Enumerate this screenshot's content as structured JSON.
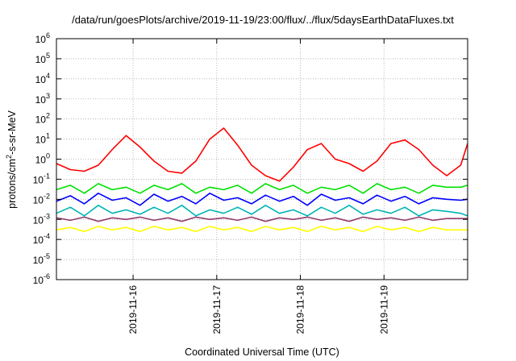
{
  "chart_data": {
    "type": "line",
    "title": "/data/run/goesPlots/archive/2019-11-19/23:00/flux/../flux/5daysEarthDataFluxes.txt",
    "xlabel": "Coordinated Universal Time (UTC)",
    "ylabel": {
      "base": "protons/cm",
      "sup": "2",
      "rest": "-s-sr-MeV"
    },
    "yscale": "log",
    "ylim": [
      1e-06,
      1000000.0
    ],
    "y_ticks": [
      {
        "value": 1e-06,
        "base": "10",
        "exp": "-6"
      },
      {
        "value": 1e-05,
        "base": "10",
        "exp": "-5"
      },
      {
        "value": 0.0001,
        "base": "10",
        "exp": "-4"
      },
      {
        "value": 0.001,
        "base": "10",
        "exp": "-3"
      },
      {
        "value": 0.01,
        "base": "10",
        "exp": "-2"
      },
      {
        "value": 0.1,
        "base": "10",
        "exp": "-1"
      },
      {
        "value": 1,
        "base": "10",
        "exp": "0"
      },
      {
        "value": 10.0,
        "base": "10",
        "exp": "1"
      },
      {
        "value": 100.0,
        "base": "10",
        "exp": "2"
      },
      {
        "value": 1000.0,
        "base": "10",
        "exp": "3"
      },
      {
        "value": 10000.0,
        "base": "10",
        "exp": "4"
      },
      {
        "value": 100000.0,
        "base": "10",
        "exp": "5"
      },
      {
        "value": 1000000.0,
        "base": "10",
        "exp": "6"
      }
    ],
    "xlim": [
      "2019-11-15T02:00",
      "2019-11-20T00:00"
    ],
    "x_ticks": [
      {
        "value": "2019-11-16T00:00",
        "label": "2019-11-16"
      },
      {
        "value": "2019-11-17T00:00",
        "label": "2019-11-17"
      },
      {
        "value": "2019-11-18T00:00",
        "label": "2019-11-18"
      },
      {
        "value": "2019-11-19T00:00",
        "label": "2019-11-19"
      }
    ],
    "grid": true,
    "series": [
      {
        "color": "#ff0000",
        "x": [
          "2019-11-15T02:00",
          "2019-11-15T06:00",
          "2019-11-15T10:00",
          "2019-11-15T14:00",
          "2019-11-15T18:00",
          "2019-11-15T22:00",
          "2019-11-16T02:00",
          "2019-11-16T06:00",
          "2019-11-16T10:00",
          "2019-11-16T14:00",
          "2019-11-16T18:00",
          "2019-11-16T22:00",
          "2019-11-17T02:00",
          "2019-11-17T06:00",
          "2019-11-17T10:00",
          "2019-11-17T14:00",
          "2019-11-17T18:00",
          "2019-11-17T22:00",
          "2019-11-18T02:00",
          "2019-11-18T06:00",
          "2019-11-18T10:00",
          "2019-11-18T14:00",
          "2019-11-18T18:00",
          "2019-11-18T22:00",
          "2019-11-19T02:00",
          "2019-11-19T06:00",
          "2019-11-19T10:00",
          "2019-11-19T14:00",
          "2019-11-19T18:00",
          "2019-11-19T22:00",
          "2019-11-20T00:00"
        ],
        "values": [
          0.6,
          0.3,
          0.25,
          0.5,
          3,
          15,
          4,
          0.8,
          0.25,
          0.2,
          0.8,
          10,
          35,
          5,
          0.5,
          0.15,
          0.08,
          0.4,
          3,
          6,
          1,
          0.6,
          0.25,
          0.8,
          6,
          9,
          3,
          0.5,
          0.15,
          0.5,
          6
        ]
      },
      {
        "color": "#00e000",
        "x": [
          "2019-11-15T02:00",
          "2019-11-15T06:00",
          "2019-11-15T10:00",
          "2019-11-15T14:00",
          "2019-11-15T18:00",
          "2019-11-15T22:00",
          "2019-11-16T02:00",
          "2019-11-16T06:00",
          "2019-11-16T10:00",
          "2019-11-16T14:00",
          "2019-11-16T18:00",
          "2019-11-16T22:00",
          "2019-11-17T02:00",
          "2019-11-17T06:00",
          "2019-11-17T10:00",
          "2019-11-17T14:00",
          "2019-11-17T18:00",
          "2019-11-17T22:00",
          "2019-11-18T02:00",
          "2019-11-18T06:00",
          "2019-11-18T10:00",
          "2019-11-18T14:00",
          "2019-11-18T18:00",
          "2019-11-18T22:00",
          "2019-11-19T02:00",
          "2019-11-19T06:00",
          "2019-11-19T10:00",
          "2019-11-19T14:00",
          "2019-11-19T18:00",
          "2019-11-19T22:00",
          "2019-11-20T00:00"
        ],
        "values": [
          0.03,
          0.05,
          0.02,
          0.06,
          0.03,
          0.04,
          0.02,
          0.05,
          0.03,
          0.06,
          0.02,
          0.04,
          0.03,
          0.05,
          0.02,
          0.06,
          0.03,
          0.05,
          0.02,
          0.04,
          0.03,
          0.05,
          0.02,
          0.06,
          0.03,
          0.04,
          0.02,
          0.05,
          0.04,
          0.04,
          0.05
        ]
      },
      {
        "color": "#0000ff",
        "x": [
          "2019-11-15T02:00",
          "2019-11-15T06:00",
          "2019-11-15T10:00",
          "2019-11-15T14:00",
          "2019-11-15T18:00",
          "2019-11-15T22:00",
          "2019-11-16T02:00",
          "2019-11-16T06:00",
          "2019-11-16T10:00",
          "2019-11-16T14:00",
          "2019-11-16T18:00",
          "2019-11-16T22:00",
          "2019-11-17T02:00",
          "2019-11-17T06:00",
          "2019-11-17T10:00",
          "2019-11-17T14:00",
          "2019-11-17T18:00",
          "2019-11-17T22:00",
          "2019-11-18T02:00",
          "2019-11-18T06:00",
          "2019-11-18T10:00",
          "2019-11-18T14:00",
          "2019-11-18T18:00",
          "2019-11-18T22:00",
          "2019-11-19T02:00",
          "2019-11-19T06:00",
          "2019-11-19T10:00",
          "2019-11-19T14:00",
          "2019-11-19T18:00",
          "2019-11-19T22:00",
          "2019-11-20T00:00"
        ],
        "values": [
          0.008,
          0.015,
          0.006,
          0.02,
          0.009,
          0.012,
          0.005,
          0.018,
          0.008,
          0.014,
          0.006,
          0.02,
          0.009,
          0.012,
          0.006,
          0.016,
          0.008,
          0.014,
          0.005,
          0.018,
          0.009,
          0.012,
          0.006,
          0.016,
          0.008,
          0.014,
          0.006,
          0.012,
          0.01,
          0.009,
          0.01
        ]
      },
      {
        "color": "#00b4b4",
        "x": [
          "2019-11-15T02:00",
          "2019-11-15T06:00",
          "2019-11-15T10:00",
          "2019-11-15T14:00",
          "2019-11-15T18:00",
          "2019-11-15T22:00",
          "2019-11-16T02:00",
          "2019-11-16T06:00",
          "2019-11-16T10:00",
          "2019-11-16T14:00",
          "2019-11-16T18:00",
          "2019-11-16T22:00",
          "2019-11-17T02:00",
          "2019-11-17T06:00",
          "2019-11-17T10:00",
          "2019-11-17T14:00",
          "2019-11-17T18:00",
          "2019-11-17T22:00",
          "2019-11-18T02:00",
          "2019-11-18T06:00",
          "2019-11-18T10:00",
          "2019-11-18T14:00",
          "2019-11-18T18:00",
          "2019-11-18T22:00",
          "2019-11-19T02:00",
          "2019-11-19T06:00",
          "2019-11-19T10:00",
          "2019-11-19T14:00",
          "2019-11-19T18:00",
          "2019-11-19T22:00",
          "2019-11-20T00:00"
        ],
        "values": [
          0.002,
          0.004,
          0.0015,
          0.005,
          0.002,
          0.003,
          0.0018,
          0.004,
          0.002,
          0.005,
          0.0015,
          0.003,
          0.002,
          0.004,
          0.0018,
          0.005,
          0.002,
          0.003,
          0.0015,
          0.004,
          0.002,
          0.005,
          0.0018,
          0.003,
          0.002,
          0.004,
          0.0015,
          0.003,
          0.0025,
          0.002,
          0.0015
        ]
      },
      {
        "color": "#943c6e",
        "x": [
          "2019-11-15T02:00",
          "2019-11-15T06:00",
          "2019-11-15T10:00",
          "2019-11-15T14:00",
          "2019-11-15T18:00",
          "2019-11-15T22:00",
          "2019-11-16T02:00",
          "2019-11-16T06:00",
          "2019-11-16T10:00",
          "2019-11-16T14:00",
          "2019-11-16T18:00",
          "2019-11-16T22:00",
          "2019-11-17T02:00",
          "2019-11-17T06:00",
          "2019-11-17T10:00",
          "2019-11-17T14:00",
          "2019-11-17T18:00",
          "2019-11-17T22:00",
          "2019-11-18T02:00",
          "2019-11-18T06:00",
          "2019-11-18T10:00",
          "2019-11-18T14:00",
          "2019-11-18T18:00",
          "2019-11-18T22:00",
          "2019-11-19T02:00",
          "2019-11-19T06:00",
          "2019-11-19T10:00",
          "2019-11-19T14:00",
          "2019-11-19T18:00",
          "2019-11-19T22:00",
          "2019-11-20T00:00"
        ],
        "values": [
          0.0012,
          0.0009,
          0.0013,
          0.0008,
          0.0012,
          0.001,
          0.0013,
          0.0009,
          0.0012,
          0.0008,
          0.0013,
          0.001,
          0.0012,
          0.0009,
          0.0013,
          0.0008,
          0.0012,
          0.001,
          0.0013,
          0.0009,
          0.0012,
          0.0008,
          0.0013,
          0.001,
          0.0012,
          0.0009,
          0.0013,
          0.0009,
          0.0011,
          0.0011,
          0.0011
        ]
      },
      {
        "color": "#ffff00",
        "x": [
          "2019-11-15T02:00",
          "2019-11-15T06:00",
          "2019-11-15T10:00",
          "2019-11-15T14:00",
          "2019-11-15T18:00",
          "2019-11-15T22:00",
          "2019-11-16T02:00",
          "2019-11-16T06:00",
          "2019-11-16T10:00",
          "2019-11-16T14:00",
          "2019-11-16T18:00",
          "2019-11-16T22:00",
          "2019-11-17T02:00",
          "2019-11-17T06:00",
          "2019-11-17T10:00",
          "2019-11-17T14:00",
          "2019-11-17T18:00",
          "2019-11-17T22:00",
          "2019-11-18T02:00",
          "2019-11-18T06:00",
          "2019-11-18T10:00",
          "2019-11-18T14:00",
          "2019-11-18T18:00",
          "2019-11-18T22:00",
          "2019-11-19T02:00",
          "2019-11-19T06:00",
          "2019-11-19T10:00",
          "2019-11-19T14:00",
          "2019-11-19T18:00",
          "2019-11-19T22:00",
          "2019-11-20T00:00"
        ],
        "values": [
          0.0003,
          0.0004,
          0.00025,
          0.00045,
          0.0003,
          0.0004,
          0.00025,
          0.00045,
          0.0003,
          0.0004,
          0.00025,
          0.00045,
          0.0003,
          0.0004,
          0.00025,
          0.00045,
          0.0003,
          0.0004,
          0.00025,
          0.00045,
          0.0003,
          0.0004,
          0.00025,
          0.00045,
          0.0003,
          0.0004,
          0.00025,
          0.0004,
          0.0003,
          0.0003,
          0.0003
        ]
      }
    ]
  }
}
